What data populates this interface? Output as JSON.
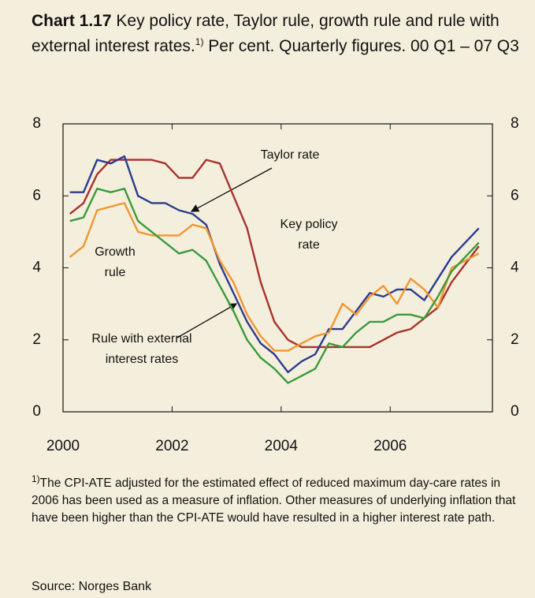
{
  "chart_data": {
    "type": "line",
    "title_label": "Chart 1.17",
    "title": "Key policy rate, Taylor rule, growth rule and rule with external interest rates.",
    "title_note": "1)",
    "subtitle": "Per cent. Quarterly figures. 00 Q1 –  07 Q3",
    "x": [
      2000.125,
      2000.375,
      2000.625,
      2000.875,
      2001.125,
      2001.375,
      2001.625,
      2001.875,
      2002.125,
      2002.375,
      2002.625,
      2002.875,
      2003.125,
      2003.375,
      2003.625,
      2003.875,
      2004.125,
      2004.375,
      2004.625,
      2004.875,
      2005.125,
      2005.375,
      2005.625,
      2005.875,
      2006.125,
      2006.375,
      2006.625,
      2006.875,
      2007.125,
      2007.375,
      2007.625
    ],
    "xlim": [
      2000,
      2007.875
    ],
    "xticks": [
      2000,
      2002,
      2004,
      2006
    ],
    "ylim": [
      0,
      8
    ],
    "yticks": [
      0,
      2,
      4,
      6,
      8
    ],
    "series": [
      {
        "color": "#a8322c",
        "values": [
          5.5,
          5.8,
          6.6,
          7.0,
          7.0,
          7.0,
          7.0,
          6.9,
          6.5,
          6.5,
          7.0,
          6.9,
          6.0,
          5.1,
          3.6,
          2.5,
          2.0,
          1.8,
          1.8,
          1.8,
          1.8,
          1.8,
          1.8,
          2.0,
          2.2,
          2.3,
          2.6,
          2.9,
          3.6,
          4.1,
          4.6
        ]
      },
      {
        "color": "#2b3b8f",
        "values": [
          6.1,
          6.1,
          7.0,
          6.9,
          7.1,
          6.0,
          5.8,
          5.8,
          5.6,
          5.5,
          5.2,
          4.1,
          3.3,
          2.5,
          1.9,
          1.6,
          1.1,
          1.4,
          1.6,
          2.3,
          2.3,
          2.8,
          3.3,
          3.2,
          3.4,
          3.4,
          3.1,
          3.7,
          4.3,
          4.7,
          5.1
        ]
      },
      {
        "color": "#f29530",
        "values": [
          4.3,
          4.6,
          5.6,
          5.7,
          5.8,
          5.0,
          4.9,
          4.9,
          4.9,
          5.2,
          5.1,
          4.2,
          3.6,
          2.7,
          2.1,
          1.7,
          1.7,
          1.9,
          2.1,
          2.2,
          3.0,
          2.7,
          3.2,
          3.5,
          3.0,
          3.7,
          3.4,
          2.9,
          4.0,
          4.2,
          4.4
        ]
      },
      {
        "color": "#3a9a3c",
        "values": [
          5.3,
          5.4,
          6.2,
          6.1,
          6.2,
          5.3,
          5.0,
          4.7,
          4.4,
          4.5,
          4.2,
          3.5,
          2.8,
          2.0,
          1.5,
          1.2,
          0.8,
          1.0,
          1.2,
          1.9,
          1.8,
          2.2,
          2.5,
          2.5,
          2.7,
          2.7,
          2.6,
          3.2,
          3.9,
          4.3,
          4.7
        ]
      }
    ],
    "annotations": [
      {
        "lines": [
          "Taylor rate"
        ]
      },
      {
        "lines": [
          "Key policy",
          "rate"
        ]
      },
      {
        "lines": [
          "Growth",
          "rule"
        ]
      },
      {
        "lines": [
          "Rule with external",
          "interest rates"
        ]
      }
    ],
    "footnote_mark": "1)",
    "footnote": "The CPI-ATE adjusted for the estimated effect of reduced maximum day-care rates in 2006 has been used as a measure of inflation. Other measures of underlying inflation that have been higher than the CPI-ATE would have resulted in a higher interest rate path.",
    "source": "Source: Norges Bank"
  }
}
